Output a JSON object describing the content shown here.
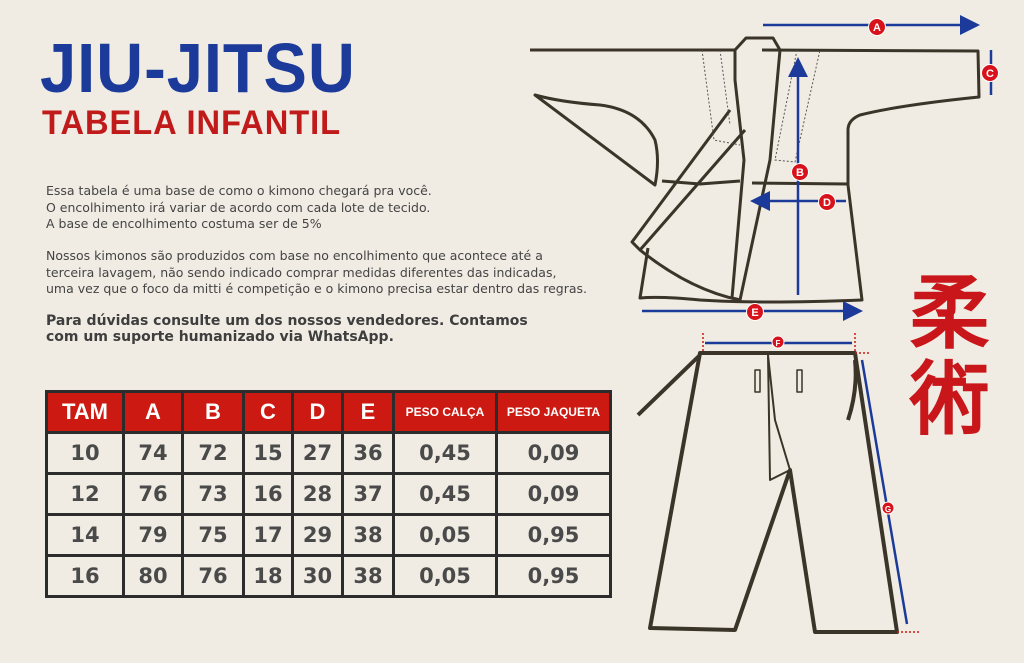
{
  "header": {
    "title": "JIU-JITSU",
    "subtitle": "TABELA INFANTIL"
  },
  "intro": {
    "lines1": [
      "Essa tabela é uma base de como o kimono chegará pra você.",
      "O encolhimento irá variar de acordo com cada lote de tecido.",
      "A base de encolhimento costuma ser de 5%"
    ],
    "lines2": [
      "Nossos kimonos são produzidos com base no encolhimento que acontece até a",
      "terceira lavagem, não sendo indicado comprar medidas diferentes das indicadas,",
      "uma vez que o foco da mitti é competição e o kimono precisa estar dentro das regras."
    ],
    "bold": [
      "Para dúvidas consulte um dos nossos vendedores. Contamos",
      "com um suporte humanizado via WhatsApp."
    ]
  },
  "table": {
    "headers": [
      "TAM",
      "A",
      "B",
      "C",
      "D",
      "E",
      "PESO CALÇA",
      "PESO JAQUETA"
    ],
    "rows": [
      [
        "10",
        "74",
        "72",
        "15",
        "27",
        "36",
        "0,45",
        "0,09"
      ],
      [
        "12",
        "76",
        "73",
        "16",
        "28",
        "37",
        "0,45",
        "0,09"
      ],
      [
        "14",
        "79",
        "75",
        "17",
        "29",
        "38",
        "0,05",
        "0,95"
      ],
      [
        "16",
        "80",
        "76",
        "18",
        "30",
        "38",
        "0,05",
        "0,95"
      ]
    ]
  },
  "diagram": {
    "labels": [
      "A",
      "B",
      "C",
      "D",
      "E",
      "F",
      "G"
    ]
  },
  "logo": {
    "kanji": "柔術"
  },
  "colors": {
    "blue": "#1b3a9a",
    "red": "#cc1a12",
    "outline": "#3a3528",
    "background": "#f1ece3"
  }
}
